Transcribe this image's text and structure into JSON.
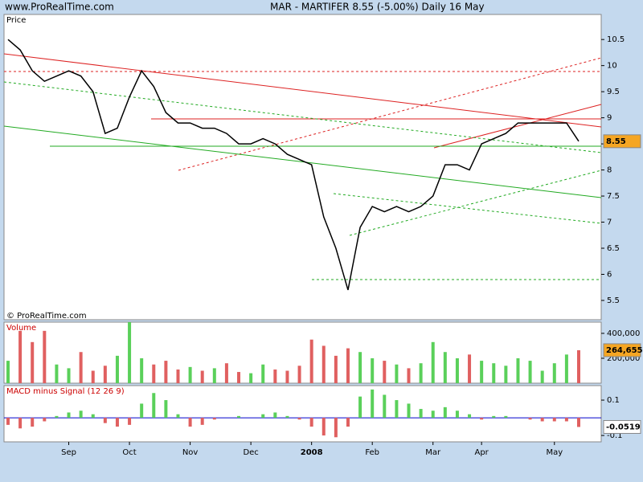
{
  "header": {
    "site": "www.ProRealTime.com",
    "title": "MAR - MARTIFER    8.55 (-5.00%)    Daily  16 May"
  },
  "watermark": "© ProRealTime.com",
  "chart_data": [
    {
      "type": "line",
      "title": "Price",
      "color": "#000000",
      "values": [
        10.5,
        10.3,
        9.9,
        9.7,
        9.8,
        9.9,
        9.8,
        9.5,
        8.7,
        8.8,
        9.4,
        9.9,
        9.6,
        9.1,
        8.9,
        8.9,
        8.8,
        8.8,
        8.7,
        8.5,
        8.5,
        8.6,
        8.5,
        8.3,
        8.2,
        8.1,
        7.1,
        6.5,
        5.7,
        6.9,
        7.3,
        7.2,
        7.3,
        7.2,
        7.3,
        7.5,
        8.1,
        8.1,
        8.0,
        8.5,
        8.6,
        8.7,
        8.9,
        8.9,
        8.9,
        8.9,
        8.9,
        8.55
      ],
      "ylim": [
        5.13,
        10.98
      ],
      "yticks": [
        10.5,
        10,
        9.5,
        9,
        8.5,
        8,
        7.5,
        7,
        6.5,
        6,
        5.5
      ],
      "current": 8.55,
      "current_color": "#f5a623"
    },
    {
      "type": "bar",
      "title": "Volume",
      "up_color": "#5ad05a",
      "down_color": "#e06060",
      "values": [
        180000,
        420000,
        330000,
        420000,
        150000,
        120000,
        250000,
        100000,
        140000,
        220000,
        490000,
        200000,
        150000,
        180000,
        110000,
        130000,
        100000,
        120000,
        160000,
        90000,
        80000,
        150000,
        110000,
        100000,
        140000,
        350000,
        300000,
        220000,
        280000,
        250000,
        200000,
        180000,
        150000,
        120000,
        160000,
        330000,
        250000,
        200000,
        230000,
        180000,
        160000,
        140000,
        200000,
        180000,
        100000,
        160000,
        230000,
        264655
      ],
      "ylim": [
        0,
        490000
      ],
      "yticks": [
        {
          "value": 400000,
          "label": "400,000"
        },
        {
          "value": 200000,
          "label": "200,000"
        }
      ],
      "current": {
        "value": 264655,
        "label": "264,655"
      },
      "current_color": "#f5a623"
    },
    {
      "type": "bar",
      "title": "MACD minus Signal (12 26 9)",
      "up_color": "#5ad05a",
      "down_color": "#e06060",
      "zero_color": "#0000cc",
      "values": [
        -0.04,
        -0.06,
        -0.05,
        -0.02,
        0.01,
        0.03,
        0.04,
        0.02,
        -0.03,
        -0.05,
        -0.04,
        0.08,
        0.14,
        0.1,
        0.02,
        -0.05,
        -0.04,
        -0.01,
        0.0,
        0.01,
        0.0,
        0.02,
        0.03,
        0.01,
        -0.01,
        -0.05,
        -0.1,
        -0.11,
        -0.05,
        0.12,
        0.16,
        0.13,
        0.1,
        0.08,
        0.05,
        0.04,
        0.06,
        0.04,
        0.02,
        -0.01,
        0.01,
        0.01,
        0.0,
        -0.01,
        -0.02,
        -0.02,
        -0.02,
        -0.0519
      ],
      "ylim": [
        -0.136,
        0.182
      ],
      "yticks": [
        0.1,
        -0.1
      ],
      "current": -0.0519,
      "current_color": "#ffffff",
      "categories": [
        null,
        null,
        null,
        null,
        null,
        "Sep",
        null,
        null,
        null,
        null,
        "Oct",
        null,
        null,
        null,
        null,
        "Nov",
        null,
        null,
        null,
        null,
        "Dec",
        null,
        null,
        null,
        null,
        "2008",
        null,
        null,
        null,
        null,
        "Feb",
        null,
        null,
        null,
        null,
        "Mar",
        null,
        null,
        null,
        "Apr",
        null,
        null,
        null,
        null,
        null,
        "May",
        null,
        null
      ]
    }
  ]
}
